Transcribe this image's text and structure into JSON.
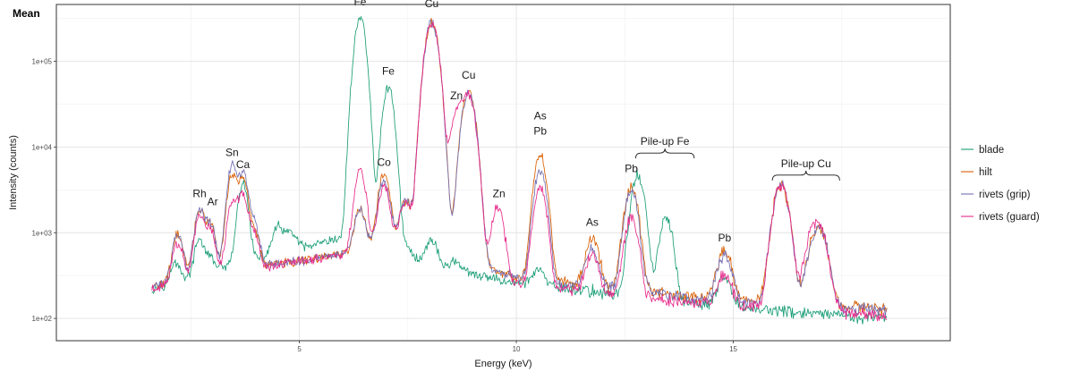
{
  "chart_data": {
    "type": "line",
    "panel_title": "Mean",
    "xlabel": "Energy (keV)",
    "ylabel": "Intensity (counts)",
    "log_y": true,
    "xlim": [
      -0.6,
      20.0
    ],
    "ylim": [
      55,
      460000
    ],
    "x_ticks": [
      5,
      10,
      15
    ],
    "x_tick_labels": [
      "5",
      "10",
      "15"
    ],
    "y_ticks": [
      100,
      1000,
      10000,
      100000
    ],
    "y_tick_labels": [
      "1e+02",
      "1e+03",
      "1e+04",
      "1e+05"
    ],
    "grid": true,
    "legend_position": "right",
    "series": [
      {
        "name": "blade",
        "color": "#1b9e77",
        "baseline": [
          [
            1.6,
            220
          ],
          [
            2.5,
            300
          ],
          [
            3.5,
            430
          ],
          [
            5.0,
            650
          ],
          [
            6.2,
            900
          ],
          [
            7.0,
            720
          ],
          [
            7.6,
            500
          ],
          [
            8.5,
            360
          ],
          [
            10.0,
            260
          ],
          [
            11.0,
            230
          ],
          [
            12.0,
            200
          ],
          [
            13.0,
            170
          ],
          [
            14.0,
            150
          ],
          [
            15.5,
            130
          ],
          [
            17.0,
            110
          ],
          [
            18.5,
            100
          ]
        ],
        "peaks": [
          [
            2.15,
            180,
            0.1
          ],
          [
            2.7,
            500,
            0.1
          ],
          [
            2.95,
            150,
            0.1
          ],
          [
            3.7,
            3200,
            0.1
          ],
          [
            4.5,
            600,
            0.11
          ],
          [
            4.8,
            400,
            0.12
          ],
          [
            6.4,
            325000,
            0.11
          ],
          [
            7.05,
            49000,
            0.11
          ],
          [
            7.45,
            150,
            0.12
          ],
          [
            8.05,
            400,
            0.12
          ],
          [
            8.6,
            120,
            0.12
          ],
          [
            10.5,
            130,
            0.12
          ],
          [
            12.8,
            4500,
            0.13
          ],
          [
            13.45,
            1300,
            0.13
          ],
          [
            14.8,
            150,
            0.14
          ]
        ]
      },
      {
        "name": "hilt",
        "color": "#d95f02",
        "baseline": [
          [
            1.6,
            230
          ],
          [
            2.5,
            320
          ],
          [
            3.5,
            380
          ],
          [
            5.0,
            470
          ],
          [
            6.2,
            600
          ],
          [
            7.0,
            700
          ],
          [
            7.6,
            900
          ],
          [
            8.5,
            650
          ],
          [
            9.5,
            360
          ],
          [
            10.0,
            300
          ],
          [
            11.0,
            260
          ],
          [
            12.0,
            240
          ],
          [
            13.0,
            210
          ],
          [
            14.0,
            180
          ],
          [
            15.5,
            160
          ],
          [
            17.0,
            140
          ],
          [
            18.5,
            130
          ]
        ],
        "peaks": [
          [
            2.2,
            700,
            0.1
          ],
          [
            2.7,
            1500,
            0.1
          ],
          [
            2.95,
            900,
            0.1
          ],
          [
            3.45,
            4300,
            0.1
          ],
          [
            3.7,
            3800,
            0.1
          ],
          [
            3.95,
            700,
            0.1
          ],
          [
            6.4,
            1200,
            0.11
          ],
          [
            6.95,
            4300,
            0.11
          ],
          [
            7.45,
            1500,
            0.12
          ],
          [
            8.05,
            280000,
            0.13
          ],
          [
            8.9,
            43000,
            0.13
          ],
          [
            10.55,
            7800,
            0.12
          ],
          [
            11.75,
            600,
            0.13
          ],
          [
            12.65,
            3300,
            0.13
          ],
          [
            14.8,
            450,
            0.14
          ],
          [
            16.1,
            3500,
            0.15
          ],
          [
            16.8,
            300,
            0.15
          ],
          [
            17.0,
            900,
            0.15
          ]
        ]
      },
      {
        "name": "rivets (grip)",
        "color": "#7570b3",
        "baseline": [
          [
            1.6,
            230
          ],
          [
            2.5,
            320
          ],
          [
            3.5,
            380
          ],
          [
            5.0,
            470
          ],
          [
            6.2,
            600
          ],
          [
            7.0,
            700
          ],
          [
            7.6,
            900
          ],
          [
            8.5,
            650
          ],
          [
            9.5,
            360
          ],
          [
            10.0,
            300
          ],
          [
            11.0,
            250
          ],
          [
            12.0,
            230
          ],
          [
            13.0,
            200
          ],
          [
            14.0,
            175
          ],
          [
            15.5,
            155
          ],
          [
            17.0,
            135
          ],
          [
            18.5,
            125
          ]
        ],
        "peaks": [
          [
            2.2,
            700,
            0.1
          ],
          [
            2.7,
            1500,
            0.1
          ],
          [
            2.95,
            900,
            0.1
          ],
          [
            3.45,
            5600,
            0.1
          ],
          [
            3.7,
            4300,
            0.1
          ],
          [
            3.95,
            1000,
            0.1
          ],
          [
            6.4,
            1200,
            0.11
          ],
          [
            6.95,
            3300,
            0.11
          ],
          [
            7.45,
            1500,
            0.12
          ],
          [
            8.05,
            280000,
            0.13
          ],
          [
            8.9,
            43000,
            0.13
          ],
          [
            10.55,
            5000,
            0.12
          ],
          [
            11.75,
            400,
            0.13
          ],
          [
            12.65,
            2800,
            0.13
          ],
          [
            14.8,
            400,
            0.14
          ],
          [
            16.1,
            3500,
            0.15
          ],
          [
            16.8,
            250,
            0.15
          ],
          [
            17.0,
            900,
            0.15
          ]
        ]
      },
      {
        "name": "rivets (guard)",
        "color": "#e7298a",
        "baseline": [
          [
            1.6,
            220
          ],
          [
            2.5,
            300
          ],
          [
            3.5,
            350
          ],
          [
            5.0,
            460
          ],
          [
            6.2,
            580
          ],
          [
            7.0,
            660
          ],
          [
            7.6,
            820
          ],
          [
            8.5,
            500
          ],
          [
            9.5,
            300
          ],
          [
            10.0,
            260
          ],
          [
            11.0,
            220
          ],
          [
            12.0,
            200
          ],
          [
            13.0,
            170
          ],
          [
            14.0,
            150
          ],
          [
            15.5,
            140
          ],
          [
            17.0,
            120
          ],
          [
            18.5,
            110
          ]
        ],
        "peaks": [
          [
            2.2,
            500,
            0.1
          ],
          [
            2.7,
            1300,
            0.1
          ],
          [
            2.95,
            800,
            0.1
          ],
          [
            3.45,
            1900,
            0.1
          ],
          [
            3.7,
            2500,
            0.1
          ],
          [
            3.95,
            600,
            0.1
          ],
          [
            6.4,
            4600,
            0.11
          ],
          [
            6.95,
            2800,
            0.11
          ],
          [
            7.45,
            1500,
            0.12
          ],
          [
            8.05,
            280000,
            0.13
          ],
          [
            8.62,
            24000,
            0.12
          ],
          [
            8.9,
            40000,
            0.13
          ],
          [
            9.57,
            1700,
            0.12
          ],
          [
            10.55,
            3200,
            0.12
          ],
          [
            11.75,
            350,
            0.13
          ],
          [
            12.65,
            1300,
            0.13
          ],
          [
            14.8,
            180,
            0.14
          ],
          [
            16.1,
            3500,
            0.15
          ],
          [
            16.8,
            600,
            0.15
          ],
          [
            17.0,
            900,
            0.15
          ]
        ]
      }
    ],
    "annotations": [
      {
        "text": "Rh",
        "x": 2.7,
        "y": 2600
      },
      {
        "text": "Ar",
        "x": 3.0,
        "y": 2100
      },
      {
        "text": "Sn",
        "x": 3.45,
        "y": 7800
      },
      {
        "text": "Ca",
        "x": 3.7,
        "y": 5700
      },
      {
        "text": "Fe",
        "x": 6.4,
        "y": 450000
      },
      {
        "text": "Fe",
        "x": 7.05,
        "y": 70000
      },
      {
        "text": "Co",
        "x": 6.95,
        "y": 6000
      },
      {
        "text": "Cu",
        "x": 8.05,
        "y": 430000
      },
      {
        "text": "Zn",
        "x": 8.62,
        "y": 36000
      },
      {
        "text": "Cu",
        "x": 8.9,
        "y": 63000
      },
      {
        "text": "Zn",
        "x": 9.6,
        "y": 2600
      },
      {
        "text": "As",
        "x": 10.55,
        "y": 21000
      },
      {
        "text": "Pb",
        "x": 10.55,
        "y": 14000
      },
      {
        "text": "As",
        "x": 11.75,
        "y": 1200
      },
      {
        "text": "Pb",
        "x": 12.65,
        "y": 5100
      },
      {
        "text": "Pb",
        "x": 14.8,
        "y": 790
      }
    ],
    "brackets": [
      {
        "text": "Pile-up Fe",
        "x_from": 12.75,
        "x_to": 14.1,
        "y": 8500
      },
      {
        "text": "Pile-up Cu",
        "x_from": 15.9,
        "x_to": 17.45,
        "y": 4700
      }
    ]
  }
}
